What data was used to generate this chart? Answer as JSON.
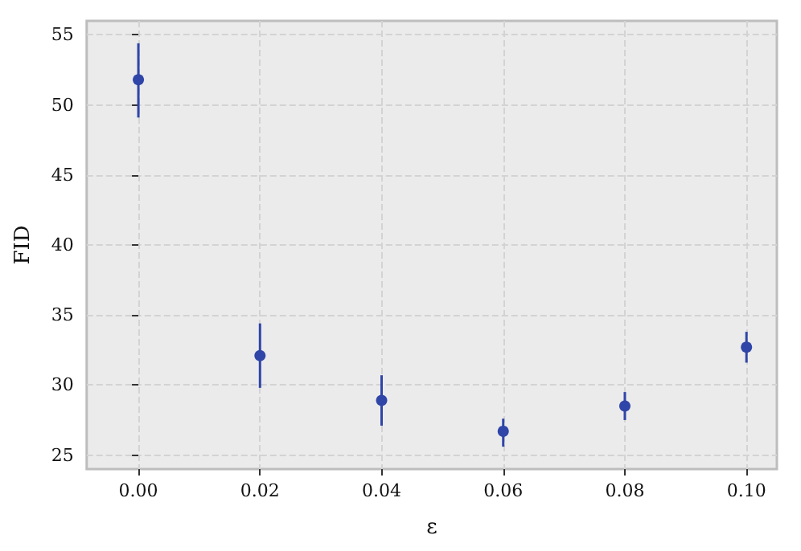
{
  "chart_data": {
    "type": "scatter",
    "xlabel": "ε",
    "ylabel": "FID",
    "x": [
      0.0,
      0.02,
      0.04,
      0.06,
      0.08,
      0.1
    ],
    "series": [
      {
        "color": "#2f45a8",
        "values": [
          51.8,
          32.1,
          28.9,
          26.7,
          28.5,
          32.7
        ],
        "errors": [
          [
            49.1,
            54.4
          ],
          [
            29.8,
            34.4
          ],
          [
            27.1,
            30.7
          ],
          [
            25.6,
            27.6
          ],
          [
            27.5,
            29.5
          ],
          [
            31.6,
            33.8
          ]
        ]
      }
    ],
    "xlim": [
      -0.0085,
      0.105
    ],
    "xticks": [
      {
        "value": 0,
        "label": "0.00"
      },
      {
        "value": 0.02,
        "label": "0.02"
      },
      {
        "value": 0.04,
        "label": "0.04"
      },
      {
        "value": 0.06,
        "label": "0.06"
      },
      {
        "value": 0.08,
        "label": "0.08"
      },
      {
        "value": 0.1,
        "label": "0.10"
      }
    ],
    "ylim": [
      24,
      56
    ],
    "yticks": [
      25,
      30,
      35,
      40,
      45,
      50,
      55
    ],
    "grid": true,
    "marker": "circle"
  }
}
